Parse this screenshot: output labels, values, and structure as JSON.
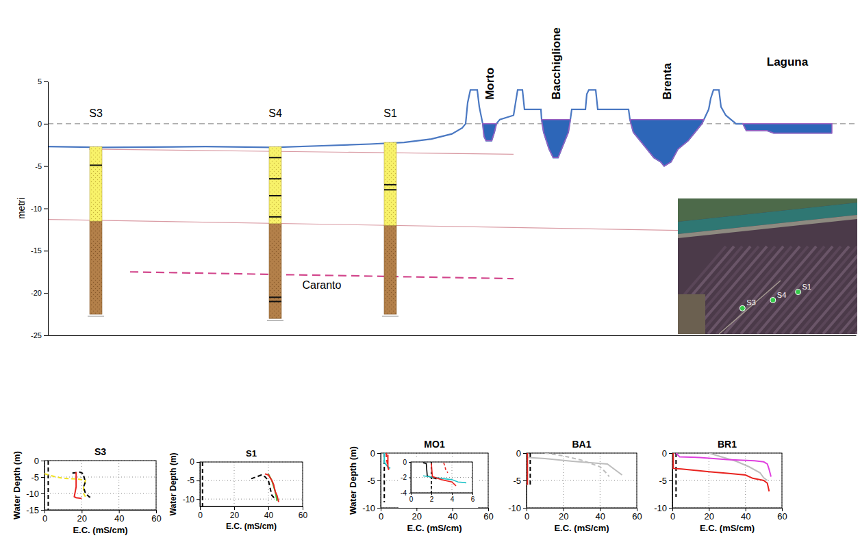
{
  "chart_data": [
    {
      "type": "cross_section",
      "ylabel": "metri",
      "xlim": [
        0,
        1180
      ],
      "ylim": [
        -25,
        5
      ],
      "yticks": [
        5,
        0,
        -5,
        -10,
        -15,
        -20,
        -25
      ],
      "tick_labels": "y",
      "sea_level": 0,
      "surface": {
        "x": [
          0,
          80,
          230,
          330,
          400,
          470,
          520,
          560,
          590,
          605,
          610,
          613,
          617,
          627,
          630,
          635,
          637,
          640,
          648,
          652,
          655,
          660,
          680,
          686,
          693,
          696,
          720,
          721,
          724,
          728,
          732,
          738,
          745,
          750,
          755,
          760,
          763,
          765,
          785,
          787,
          790,
          800,
          803,
          848,
          850,
          855,
          865,
          875,
          885,
          895,
          900,
          910,
          920,
          935,
          945,
          955,
          958,
          965,
          968,
          972,
          980,
          983,
          990,
          1005,
          1015,
          1020,
          1050,
          1060,
          1145
        ],
        "y": [
          -2.7,
          -2.8,
          -2.7,
          -2.8,
          -2.6,
          -2.4,
          -2.2,
          -1.8,
          -1.2,
          -0.5,
          0,
          2.5,
          4,
          4,
          2,
          0,
          -1.5,
          -2,
          -2,
          -1,
          0,
          0.5,
          1,
          4,
          4,
          1.7,
          1.7,
          0.5,
          -1,
          -2,
          -3,
          -4,
          -4,
          -3,
          -2,
          -1,
          0.5,
          1.7,
          1.7,
          3.5,
          4,
          4,
          1.7,
          1.7,
          0.5,
          -1,
          -2,
          -3,
          -4,
          -4.5,
          -5,
          -4.5,
          -3,
          -2,
          -1,
          0,
          0.5,
          1.7,
          3,
          4,
          4,
          2,
          1,
          0,
          0,
          -0.8,
          -0.8,
          -1.1,
          -1.1
        ]
      },
      "water": [
        {
          "name": "Morto",
          "type": "river",
          "x": [
            635,
            637,
            640,
            648,
            652,
            655
          ],
          "y": [
            0,
            -1.5,
            -2,
            -2,
            -1,
            0
          ]
        },
        {
          "name": "Bacchiglione",
          "type": "river",
          "x": [
            721,
            724,
            728,
            732,
            738,
            745,
            750,
            755,
            760,
            763
          ],
          "y": [
            0.5,
            -1,
            -2,
            -3,
            -4,
            -4,
            -3,
            -2,
            -1,
            0.5
          ]
        },
        {
          "name": "Brenta",
          "type": "river",
          "x": [
            850,
            855,
            865,
            875,
            885,
            895,
            900,
            910,
            920,
            935,
            945,
            955,
            958
          ],
          "y": [
            0.5,
            -1,
            -2,
            -3,
            -4,
            -4.5,
            -5,
            -4.5,
            -3,
            -2,
            -1,
            0,
            0.5
          ]
        },
        {
          "name": "Laguna",
          "type": "lagoon",
          "x": [
            1015,
            1020,
            1050,
            1060,
            1145,
            1145
          ],
          "y": [
            0,
            -0.8,
            -0.8,
            -1.1,
            -1.1,
            0
          ]
        }
      ],
      "layers": [
        {
          "x": [
            60,
            680
          ],
          "y": [
            -3,
            -3.6
          ]
        },
        {
          "x": [
            0,
            920
          ],
          "y": [
            -11.3,
            -12.6
          ]
        }
      ],
      "caranto": {
        "label": "Caranto",
        "x": [
          120,
          680
        ],
        "y": [
          -17.5,
          -18.3
        ]
      },
      "boreholes": [
        {
          "name": "S3",
          "x": 70,
          "top": -2.7,
          "sand_base": -11.5,
          "bottom": -22.5,
          "marks": [
            -4.9
          ]
        },
        {
          "name": "S4",
          "x": 332,
          "top": -2.7,
          "sand_base": -11.8,
          "bottom": -23,
          "marks": [
            -4,
            -6.5,
            -8.5,
            -11,
            -20.5,
            -21
          ]
        },
        {
          "name": "S1",
          "x": 500,
          "top": -2.2,
          "sand_base": -12,
          "bottom": -22.5,
          "marks": [
            -7.2,
            -7.8
          ]
        }
      ]
    },
    {
      "type": "map",
      "tick_labels": false,
      "xlim": [
        0,
        1
      ],
      "ylim": [
        0,
        1
      ],
      "points": [
        {
          "name": "S4",
          "x": 0.53,
          "y": 0.75
        },
        {
          "name": "S1",
          "x": 0.67,
          "y": 0.69
        },
        {
          "name": "S3",
          "x": 0.36,
          "y": 0.81
        }
      ]
    },
    {
      "type": "line",
      "title": "S3",
      "xlabel": "E.C. (mS/cm)",
      "ylabel": "Water Depth (m)",
      "xlim": [
        0,
        60
      ],
      "ylim": [
        -15,
        0
      ],
      "xticks": [
        0,
        20,
        40,
        60
      ],
      "yticks": [
        0,
        -5,
        -10,
        -15
      ],
      "grid": true,
      "series": [
        {
          "color": "#000000",
          "line_style": "dashed",
          "x": [
            2,
            2
          ],
          "values": [
            0,
            -15
          ]
        },
        {
          "color": "#f2e21b",
          "line_style": "dashed",
          "x": [
            0,
            5,
            10,
            18,
            22,
            21,
            21,
            22
          ],
          "values": [
            -4,
            -4.8,
            -5.4,
            -5.6,
            -6,
            -8,
            -10,
            -11
          ]
        },
        {
          "color": "#000000",
          "line_style": "dashed",
          "x": [
            15,
            19,
            21,
            21,
            22,
            21,
            22,
            24,
            25
          ],
          "values": [
            -3.8,
            -3.5,
            -4,
            -4.5,
            -6.5,
            -8,
            -10,
            -11,
            -11.3
          ]
        },
        {
          "color": "#e8231f",
          "line_style": "solid",
          "x": [
            17,
            17,
            16,
            17,
            20
          ],
          "values": [
            -3.5,
            -8,
            -11,
            -11.3,
            -11.5
          ]
        }
      ]
    },
    {
      "type": "line",
      "title": "S1",
      "xlabel": "E.C. (mS/cm)",
      "ylabel": "Water Depth (m)",
      "xlim": [
        0,
        60
      ],
      "ylim": [
        -12,
        0
      ],
      "xticks": [
        0,
        20,
        40,
        60
      ],
      "yticks": [
        0,
        -5,
        -10
      ],
      "grid": true,
      "series": [
        {
          "color": "#000000",
          "line_style": "dashed",
          "x": [
            1.5,
            1.5
          ],
          "values": [
            0,
            -12
          ]
        },
        {
          "color": "#000000",
          "line_style": "dashed",
          "x": [
            30,
            33,
            36,
            38,
            40,
            41,
            42,
            44
          ],
          "values": [
            -4.5,
            -4,
            -3.5,
            -4,
            -5,
            -7,
            -9,
            -10
          ]
        },
        {
          "color": "#3cc83c",
          "line_style": "solid",
          "x": [
            40,
            42,
            44,
            45
          ],
          "values": [
            -3.2,
            -5,
            -8,
            -10.5
          ]
        },
        {
          "color": "#e8231f",
          "line_style": "solid",
          "x": [
            38,
            40,
            42,
            43,
            44,
            45,
            46
          ],
          "values": [
            -3.2,
            -3.5,
            -5,
            -6,
            -8,
            -9,
            -10.8
          ]
        }
      ]
    },
    {
      "type": "line",
      "title": "MO1",
      "xlabel": "E.C. (mS/cm)",
      "ylabel": "Water Depth (m)",
      "xlim": [
        0,
        60
      ],
      "ylim": [
        -10,
        0
      ],
      "xticks": [
        0,
        20,
        40,
        60
      ],
      "yticks": [
        0,
        -5,
        -10
      ],
      "grid": true,
      "series": [
        {
          "color": "#000000",
          "line_style": "dashed",
          "x": [
            2,
            2
          ],
          "values": [
            0,
            -9
          ]
        },
        {
          "color": "#22c4c8",
          "line_style": "solid",
          "x": [
            2,
            2,
            3,
            4,
            5.3
          ],
          "values": [
            0,
            -1.7,
            -2.1,
            -2.5,
            -2.8
          ]
        },
        {
          "color": "#e8231f",
          "line_style": "dashed",
          "x": [
            3.2,
            3.3,
            3.5,
            4
          ],
          "values": [
            0,
            -0.8,
            -1.5,
            -2.4
          ]
        },
        {
          "color": "#e8231f",
          "line_style": "solid",
          "x": [
            4,
            4,
            4.5
          ],
          "values": [
            -0.3,
            -2.5,
            -3.1
          ]
        }
      ],
      "inset": {
        "xlim": [
          0,
          6
        ],
        "ylim": [
          -4,
          0
        ],
        "xticks": [
          0,
          2,
          4,
          6
        ],
        "yticks": [
          0,
          -2,
          -4
        ],
        "grid": true,
        "series": [
          {
            "color": "#000000",
            "line_style": "dashed",
            "x": [
              2,
              2
            ],
            "values": [
              0,
              -4
            ]
          },
          {
            "color": "#000000",
            "line_style": "solid",
            "x": [
              1.2,
              1.5,
              1.6,
              2,
              2.5
            ],
            "values": [
              -0.1,
              -0.2,
              -1.8,
              -2,
              -2.2
            ]
          },
          {
            "color": "#22c4c8",
            "line_style": "solid",
            "x": [
              1.2,
              2.8,
              4,
              4.6,
              5.4
            ],
            "values": [
              -1.8,
              -2.1,
              -2.3,
              -2.6,
              -2.7
            ]
          },
          {
            "color": "#e8231f",
            "line_style": "solid",
            "x": [
              2,
              2.1,
              3,
              4,
              4.4
            ],
            "values": [
              -0.2,
              -1.9,
              -2.3,
              -2.6,
              -3.1
            ]
          },
          {
            "color": "#e8231f",
            "line_style": "dashed",
            "x": [
              3.2,
              3.3,
              3.4,
              3.6
            ],
            "values": [
              -0.1,
              -0.5,
              -1,
              -1.4
            ]
          }
        ]
      }
    },
    {
      "type": "line",
      "title": "BA1",
      "xlabel": "E.C. (mS/cm)",
      "xlim": [
        0,
        60
      ],
      "ylim": [
        -10,
        0
      ],
      "xticks": [
        0,
        20,
        40,
        60
      ],
      "yticks": [
        0,
        -5,
        -10
      ],
      "grid": true,
      "series": [
        {
          "color": "#000000",
          "line_style": "dashed",
          "x": [
            2,
            2
          ],
          "values": [
            0,
            -6
          ]
        },
        {
          "color": "#e8231f",
          "line_style": "solid",
          "x": [
            0.5,
            0.5
          ],
          "values": [
            0,
            -5.8
          ]
        },
        {
          "color": "#bdbdbd",
          "line_style": "solid",
          "x": [
            1,
            10,
            25,
            44,
            48,
            52
          ],
          "values": [
            -0.8,
            -1,
            -1.5,
            -2,
            -3,
            -4
          ]
        },
        {
          "color": "#bdbdbd",
          "line_style": "dashed",
          "x": [
            10,
            20,
            30,
            40,
            43,
            45
          ],
          "values": [
            0,
            -0.5,
            -1.3,
            -2.5,
            -3.5,
            -4.3
          ]
        }
      ]
    },
    {
      "type": "line",
      "title": "BR1",
      "xlabel": "E.C. (mS/cm)",
      "xlim": [
        0,
        60
      ],
      "ylim": [
        -10,
        0
      ],
      "xticks": [
        0,
        20,
        40,
        60
      ],
      "yticks": [
        0,
        -5,
        -10
      ],
      "grid": true,
      "series": [
        {
          "color": "#000000",
          "line_style": "dashed",
          "x": [
            2,
            2
          ],
          "values": [
            0,
            -8
          ]
        },
        {
          "color": "#bdbdbd",
          "line_style": "solid",
          "x": [
            20,
            25,
            35,
            42,
            48,
            50,
            52
          ],
          "values": [
            0,
            -0.5,
            -1.5,
            -2.5,
            -3.6,
            -4.5,
            -5
          ]
        },
        {
          "color": "#e040e0",
          "line_style": "solid",
          "x": [
            2,
            4,
            15,
            30,
            45,
            50,
            52,
            53,
            54
          ],
          "values": [
            0,
            -0.7,
            -0.8,
            -1.2,
            -1.4,
            -1.6,
            -2,
            -3,
            -4.3
          ]
        },
        {
          "color": "#e8231f",
          "line_style": "solid",
          "x": [
            0.5,
            0.5,
            5,
            20,
            30,
            40,
            44,
            50,
            52,
            53
          ],
          "values": [
            0,
            -2.8,
            -2.9,
            -3.4,
            -3.7,
            -4,
            -4.6,
            -5,
            -5.5,
            -7
          ]
        }
      ]
    }
  ]
}
